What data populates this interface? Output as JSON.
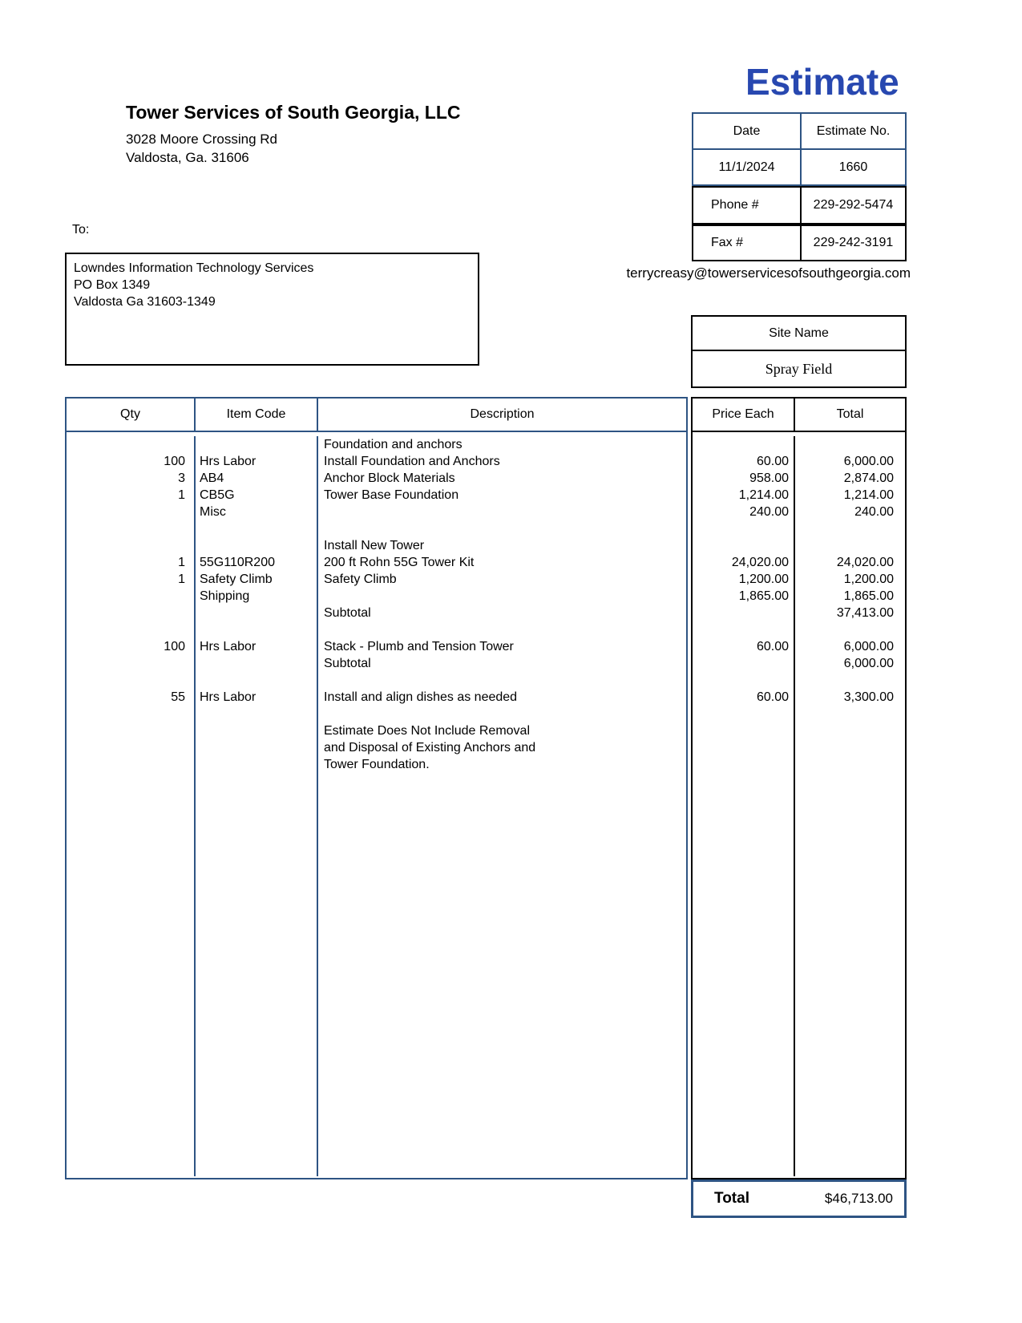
{
  "title": "Estimate",
  "company": {
    "name": "Tower Services of South Georgia, LLC",
    "address_line1": "3028 Moore Crossing Rd",
    "address_line2": "Valdosta, Ga. 31606"
  },
  "meta": {
    "date_label": "Date",
    "date_value": "11/1/2024",
    "estimate_no_label": "Estimate No.",
    "estimate_no_value": "1660",
    "phone_label": "Phone #",
    "phone_value": "229-292-5474",
    "fax_label": "Fax #",
    "fax_value": "229-242-3191",
    "email": "terrycreasy@towerservicesofsouthgeorgia.com"
  },
  "recipient": {
    "label": "To:",
    "lines": [
      "Lowndes Information Technology Services",
      "PO Box 1349",
      "Valdosta Ga 31603-1349"
    ]
  },
  "site": {
    "label": "Site Name",
    "value": "Spray Field"
  },
  "items_table": {
    "headers": {
      "qty": "Qty",
      "item_code": "Item Code",
      "description": "Description",
      "price_each": "Price Each",
      "total": "Total"
    },
    "rows": [
      {
        "qty": "",
        "code": "",
        "desc": "Foundation and anchors",
        "price": "",
        "total": ""
      },
      {
        "qty": "100",
        "code": "Hrs Labor",
        "desc": "Install Foundation and Anchors",
        "price": "60.00",
        "total": "6,000.00"
      },
      {
        "qty": "3",
        "code": "AB4",
        "desc": "Anchor Block Materials",
        "price": "958.00",
        "total": "2,874.00"
      },
      {
        "qty": "1",
        "code": "CB5G",
        "desc": "Tower Base Foundation",
        "price": "1,214.00",
        "total": "1,214.00"
      },
      {
        "qty": "",
        "code": "Misc",
        "desc": "",
        "price": "240.00",
        "total": "240.00"
      },
      {
        "qty": "",
        "code": "",
        "desc": "",
        "price": "",
        "total": ""
      },
      {
        "qty": "",
        "code": "",
        "desc": "Install New Tower",
        "price": "",
        "total": ""
      },
      {
        "qty": "1",
        "code": "55G110R200",
        "desc": "200 ft Rohn 55G Tower Kit",
        "price": "24,020.00",
        "total": "24,020.00"
      },
      {
        "qty": "1",
        "code": "Safety Climb",
        "desc": "Safety Climb",
        "price": "1,200.00",
        "total": "1,200.00"
      },
      {
        "qty": "",
        "code": "Shipping",
        "desc": "",
        "price": "1,865.00",
        "total": "1,865.00"
      },
      {
        "qty": "",
        "code": "",
        "desc": "Subtotal",
        "price": "",
        "total": "37,413.00"
      },
      {
        "qty": "",
        "code": "",
        "desc": "",
        "price": "",
        "total": ""
      },
      {
        "qty": "100",
        "code": "Hrs Labor",
        "desc": "Stack - Plumb and Tension Tower",
        "price": "60.00",
        "total": "6,000.00"
      },
      {
        "qty": "",
        "code": "",
        "desc": "Subtotal",
        "price": "",
        "total": "6,000.00"
      },
      {
        "qty": "",
        "code": "",
        "desc": "",
        "price": "",
        "total": ""
      },
      {
        "qty": "55",
        "code": "Hrs Labor",
        "desc": "Install and align dishes as needed",
        "price": "60.00",
        "total": "3,300.00"
      },
      {
        "qty": "",
        "code": "",
        "desc": "",
        "price": "",
        "total": ""
      },
      {
        "qty": "",
        "code": "",
        "desc": "Estimate Does Not Include Removal",
        "price": "",
        "total": ""
      },
      {
        "qty": "",
        "code": "",
        "desc": "and Disposal of Existing Anchors and",
        "price": "",
        "total": ""
      },
      {
        "qty": "",
        "code": "",
        "desc": "Tower Foundation.",
        "price": "",
        "total": ""
      }
    ]
  },
  "summary": {
    "total_label": "Total",
    "total_value": "$46,713.00"
  },
  "colors": {
    "title_blue": "#2848B0",
    "border_blue": "#2E5483"
  }
}
